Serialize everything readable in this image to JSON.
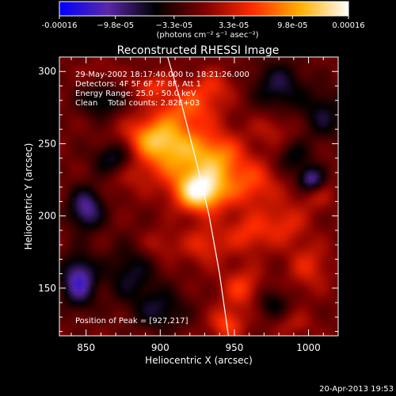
{
  "chart_data": {
    "type": "heatmap",
    "title": "Reconstructed RHESSI Image",
    "xlabel": "Heliocentric X (arcsec)",
    "ylabel": "Heliocentric Y (arcsec)",
    "xlim": [
      832,
      1020
    ],
    "ylim": [
      117,
      310
    ],
    "xticks": [
      "850",
      "900",
      "950",
      "1000"
    ],
    "xtick_values": [
      850,
      900,
      950,
      1000
    ],
    "yticks": [
      "150",
      "200",
      "250",
      "300"
    ],
    "ytick_values": [
      150,
      200,
      250,
      300
    ],
    "colorbar": {
      "range": [
        -0.00016,
        0.00016
      ],
      "tick_labels": [
        "-0.00016",
        "−9.8e-05",
        "−3.3e-05",
        "3.3e-05",
        "9.8e-05",
        "0.00016"
      ],
      "tick_values": [
        -0.00016,
        -9.8e-05,
        -3.3e-05,
        3.3e-05,
        9.8e-05,
        0.00016
      ],
      "unit_label": "(photons cm⁻² s⁻¹ asec⁻²)",
      "colors": [
        "#0000ff",
        "#5a28a8",
        "#000000",
        "#7a0000",
        "#ff2a00",
        "#ffb000",
        "#ffffff"
      ]
    },
    "annotations": [
      "29-May-2002 18:17:40.000 to 18:21:26.000",
      "Detectors: 4F 5F 6F 7F 8F, Att 1",
      "Energy Range: 25.0 - 50.0 keV",
      "Clean    Total counts: 2.82E+03"
    ],
    "peak_label": "Position of Peak = [927,217]",
    "peak": [
      927,
      217
    ],
    "limb_curve": [
      [
        905,
        310
      ],
      [
        915,
        275
      ],
      [
        925,
        235
      ],
      [
        933,
        200
      ],
      [
        940,
        160
      ],
      [
        946,
        117
      ]
    ],
    "blobs": [
      {
        "x": 927,
        "y": 217,
        "sx": 12,
        "sy": 10,
        "v": 1.0
      },
      {
        "x": 912,
        "y": 243,
        "sx": 18,
        "sy": 14,
        "v": 0.6
      },
      {
        "x": 940,
        "y": 240,
        "sx": 12,
        "sy": 12,
        "v": 0.45
      },
      {
        "x": 895,
        "y": 255,
        "sx": 14,
        "sy": 10,
        "v": 0.5
      },
      {
        "x": 918,
        "y": 275,
        "sx": 15,
        "sy": 10,
        "v": 0.42
      },
      {
        "x": 895,
        "y": 290,
        "sx": 10,
        "sy": 6,
        "v": 0.32
      },
      {
        "x": 935,
        "y": 290,
        "sx": 10,
        "sy": 8,
        "v": 0.28
      },
      {
        "x": 962,
        "y": 222,
        "sx": 13,
        "sy": 12,
        "v": 0.4
      },
      {
        "x": 960,
        "y": 188,
        "sx": 12,
        "sy": 10,
        "v": 0.35
      },
      {
        "x": 930,
        "y": 180,
        "sx": 10,
        "sy": 10,
        "v": 0.32
      },
      {
        "x": 955,
        "y": 150,
        "sx": 10,
        "sy": 10,
        "v": 0.38
      },
      {
        "x": 945,
        "y": 125,
        "sx": 8,
        "sy": 8,
        "v": 0.42
      },
      {
        "x": 985,
        "y": 195,
        "sx": 10,
        "sy": 10,
        "v": 0.3
      },
      {
        "x": 1000,
        "y": 165,
        "sx": 10,
        "sy": 12,
        "v": 0.3
      },
      {
        "x": 1005,
        "y": 215,
        "sx": 8,
        "sy": 8,
        "v": 0.22
      },
      {
        "x": 975,
        "y": 260,
        "sx": 10,
        "sy": 8,
        "v": 0.2
      },
      {
        "x": 900,
        "y": 180,
        "sx": 10,
        "sy": 8,
        "v": 0.2
      },
      {
        "x": 880,
        "y": 230,
        "sx": 10,
        "sy": 10,
        "v": 0.18
      },
      {
        "x": 990,
        "y": 125,
        "sx": 10,
        "sy": 6,
        "v": 0.18
      },
      {
        "x": 860,
        "y": 300,
        "sx": 8,
        "sy": 6,
        "v": 0.12
      },
      {
        "x": 850,
        "y": 205,
        "sx": 8,
        "sy": 10,
        "v": -0.6
      },
      {
        "x": 845,
        "y": 155,
        "sx": 8,
        "sy": 12,
        "v": -0.7
      },
      {
        "x": 1002,
        "y": 225,
        "sx": 6,
        "sy": 6,
        "v": -0.65
      },
      {
        "x": 870,
        "y": 240,
        "sx": 10,
        "sy": 8,
        "v": -0.45
      },
      {
        "x": 880,
        "y": 160,
        "sx": 12,
        "sy": 14,
        "v": -0.35
      },
      {
        "x": 980,
        "y": 290,
        "sx": 12,
        "sy": 12,
        "v": -0.4
      },
      {
        "x": 900,
        "y": 135,
        "sx": 12,
        "sy": 10,
        "v": -0.35
      },
      {
        "x": 1010,
        "y": 270,
        "sx": 10,
        "sy": 12,
        "v": -0.35
      },
      {
        "x": 990,
        "y": 240,
        "sx": 8,
        "sy": 8,
        "v": -0.3
      },
      {
        "x": 860,
        "y": 280,
        "sx": 10,
        "sy": 8,
        "v": -0.35
      },
      {
        "x": 975,
        "y": 140,
        "sx": 8,
        "sy": 8,
        "v": -0.3
      }
    ]
  },
  "footer": {
    "timestamp": "20-Apr-2013 19:53"
  }
}
